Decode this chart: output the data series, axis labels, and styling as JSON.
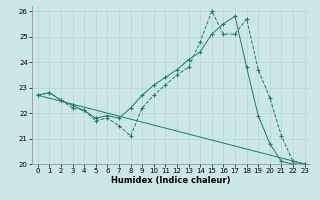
{
  "xlabel": "Humidex (Indice chaleur)",
  "xlim": [
    -0.5,
    23.5
  ],
  "ylim": [
    20,
    26.2
  ],
  "yticks": [
    20,
    21,
    22,
    23,
    24,
    25,
    26
  ],
  "xticks": [
    0,
    1,
    2,
    3,
    4,
    5,
    6,
    7,
    8,
    9,
    10,
    11,
    12,
    13,
    14,
    15,
    16,
    17,
    18,
    19,
    20,
    21,
    22,
    23
  ],
  "bg_color": "#cce8e4",
  "line_color": "#1e7a6e",
  "grid_color": "#b8d8d4",
  "series1_x": [
    0,
    1,
    2,
    3,
    4,
    5,
    6,
    7,
    8,
    9,
    10,
    11,
    12,
    13,
    14,
    15,
    16,
    17,
    18,
    19,
    20,
    21,
    22,
    23
  ],
  "series1_y": [
    22.7,
    22.8,
    22.5,
    22.2,
    22.1,
    21.7,
    21.8,
    21.5,
    21.1,
    22.2,
    22.7,
    23.1,
    23.5,
    23.8,
    24.8,
    26.0,
    25.1,
    25.1,
    25.7,
    23.7,
    22.6,
    21.1,
    20.1,
    20.0
  ],
  "series2_x": [
    0,
    1,
    2,
    3,
    4,
    5,
    6,
    7,
    8,
    9,
    10,
    11,
    12,
    13,
    14,
    15,
    16,
    17,
    18,
    19,
    20,
    21,
    22,
    23
  ],
  "series2_y": [
    22.7,
    22.8,
    22.5,
    22.3,
    22.1,
    21.8,
    21.9,
    21.8,
    22.2,
    22.7,
    23.1,
    23.4,
    23.7,
    24.1,
    24.4,
    25.1,
    25.5,
    25.8,
    23.8,
    21.9,
    20.8,
    20.1,
    20.0,
    20.0
  ],
  "series3_x": [
    0,
    23
  ],
  "series3_y": [
    22.7,
    20.0
  ]
}
